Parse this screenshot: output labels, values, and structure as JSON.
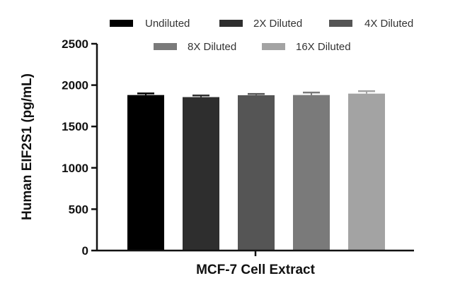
{
  "chart_data": {
    "type": "bar",
    "title": "",
    "xlabel": "MCF-7 Cell Extract",
    "ylabel": "Human EIF2S1 (pg/mL)",
    "ylim": [
      0,
      2500
    ],
    "yticks": [
      0,
      500,
      1000,
      1500,
      2000,
      2500
    ],
    "grid": false,
    "legend_position": "top",
    "categories": [
      "MCF-7 Cell Extract"
    ],
    "series": [
      {
        "name": "Undiluted",
        "values": [
          1880
        ],
        "error": [
          20
        ],
        "color": "#000000"
      },
      {
        "name": "2X Diluted",
        "values": [
          1855
        ],
        "error": [
          20
        ],
        "color": "#2e2e2e"
      },
      {
        "name": "4X Diluted",
        "values": [
          1878
        ],
        "error": [
          15
        ],
        "color": "#555555"
      },
      {
        "name": "8X Diluted",
        "values": [
          1880
        ],
        "error": [
          30
        ],
        "color": "#7a7a7a"
      },
      {
        "name": "16X Diluted",
        "values": [
          1897
        ],
        "error": [
          30
        ],
        "color": "#a3a3a3"
      }
    ]
  }
}
